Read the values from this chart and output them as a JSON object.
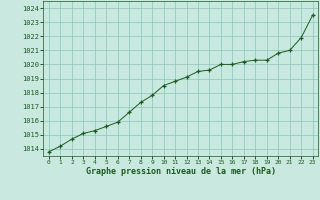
{
  "x": [
    0,
    1,
    2,
    3,
    4,
    5,
    6,
    7,
    8,
    9,
    10,
    11,
    12,
    13,
    14,
    15,
    16,
    17,
    18,
    19,
    20,
    21,
    22,
    23
  ],
  "y": [
    1013.8,
    1014.2,
    1014.7,
    1015.1,
    1015.3,
    1015.6,
    1015.9,
    1016.6,
    1017.3,
    1017.8,
    1018.5,
    1018.8,
    1019.1,
    1019.5,
    1019.6,
    1020.0,
    1020.0,
    1020.2,
    1020.3,
    1020.3,
    1020.8,
    1021.0,
    1021.9,
    1023.5
  ],
  "line_color": "#1a5c1a",
  "marker_color": "#1a5c1a",
  "bg_color": "#c8e8e0",
  "plot_bg_color": "#c8e8e0",
  "grid_color": "#88c8b8",
  "xlabel": "Graphe pression niveau de la mer (hPa)",
  "xlabel_color": "#1a5c1a",
  "tick_color": "#1a5c1a",
  "ylim": [
    1013.5,
    1024.5
  ],
  "xlim": [
    -0.5,
    23.5
  ],
  "yticks": [
    1014,
    1015,
    1016,
    1017,
    1018,
    1019,
    1020,
    1021,
    1022,
    1023,
    1024
  ],
  "xticks": [
    0,
    1,
    2,
    3,
    4,
    5,
    6,
    7,
    8,
    9,
    10,
    11,
    12,
    13,
    14,
    15,
    16,
    17,
    18,
    19,
    20,
    21,
    22,
    23
  ],
  "xtick_labels": [
    "0",
    "1",
    "2",
    "3",
    "4",
    "5",
    "6",
    "7",
    "8",
    "9",
    "10",
    "11",
    "12",
    "13",
    "14",
    "15",
    "16",
    "17",
    "18",
    "19",
    "20",
    "21",
    "22",
    "23"
  ]
}
